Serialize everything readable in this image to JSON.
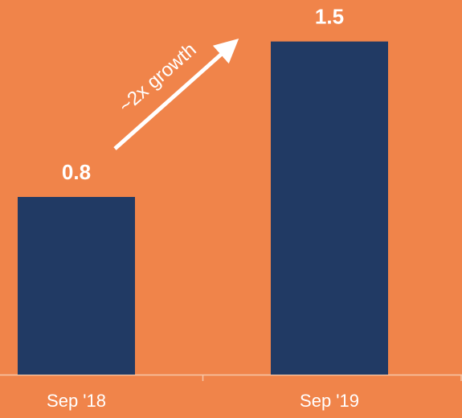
{
  "chart_data": {
    "type": "bar",
    "annotation": "~2x growth",
    "categories": [
      "Sep '18",
      "Sep '19"
    ],
    "values": [
      0.8,
      1.5
    ],
    "color": "#213a64",
    "ylim": [
      0,
      1.6
    ]
  }
}
